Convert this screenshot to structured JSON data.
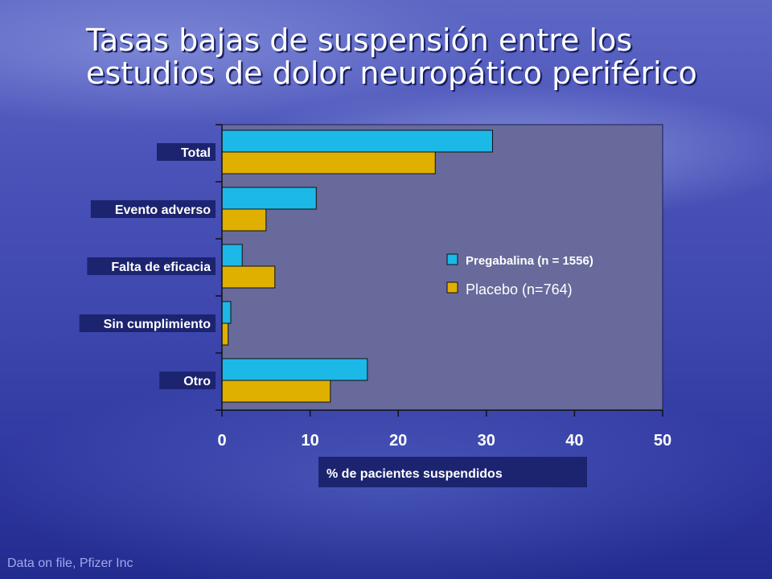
{
  "title_lines": [
    "Tasas bajas de suspensión entre los",
    "estudios de dolor neuropático periférico"
  ],
  "footnote": "Data on file, Pfizer Inc",
  "colors": {
    "pregabalina": "#1cb8e8",
    "placebo": "#e0b000",
    "plot_background": "#676a9b",
    "label_box": "#1c2470"
  },
  "chart_data": {
    "type": "bar",
    "orientation": "horizontal",
    "categories": [
      "Total",
      "Evento adverso",
      "Falta de eficacia",
      "Sin cumplimiento",
      "Otro"
    ],
    "series": [
      {
        "name": "Pregabalina (n = 1556)",
        "values": [
          30.7,
          10.7,
          2.3,
          1.0,
          16.5
        ]
      },
      {
        "name": "Placebo (n=764)",
        "values": [
          24.2,
          5.0,
          6.0,
          0.7,
          12.3
        ]
      }
    ],
    "xlabel": "% de pacientes suspendidos",
    "xlim": [
      0,
      50
    ],
    "xticks": [
      "0",
      "10",
      "20",
      "30",
      "40",
      "50"
    ],
    "grid": false,
    "legend": "right"
  }
}
